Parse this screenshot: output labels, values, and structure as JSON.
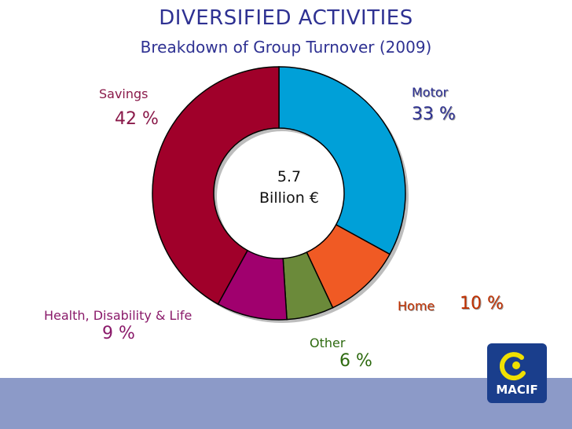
{
  "header": {
    "title": "DIVERSIFIED ACTIVITIES",
    "subtitle": "Breakdown of Group Turnover (2009)"
  },
  "center_label": {
    "line1": "5.7",
    "line2": "Billion €"
  },
  "labels": {
    "motor_name": "Motor",
    "motor_pct": "33 %",
    "home_name": "Home",
    "home_pct": "10 %",
    "other_name": "Other",
    "other_pct": "6 %",
    "health_name": "Health, Disability & Life",
    "health_pct": "9 %",
    "savings_name": "Savings",
    "savings_pct": "42 %"
  },
  "logo": {
    "text": "MACIF"
  },
  "colors": {
    "title": "#2e3192",
    "motor": "#00a0d8",
    "home": "#f05a24",
    "other": "#6b8a3a",
    "health": "#a0006e",
    "savings": "#a0002a",
    "footer": "#8c9ac8",
    "logo_bg": "#1a3e8c",
    "logo_accent": "#f0e000"
  },
  "chart_data": {
    "type": "pie",
    "donut": true,
    "title": "DIVERSIFIED ACTIVITIES",
    "subtitle": "Breakdown of Group Turnover (2009)",
    "center_text": "5.7 Billion €",
    "categories": [
      "Motor",
      "Home",
      "Other",
      "Health, Disability & Life",
      "Savings"
    ],
    "values": [
      33,
      10,
      6,
      9,
      42
    ],
    "unit": "%",
    "colors": [
      "#00a0d8",
      "#f05a24",
      "#6b8a3a",
      "#a0006e",
      "#a0002a"
    ]
  }
}
